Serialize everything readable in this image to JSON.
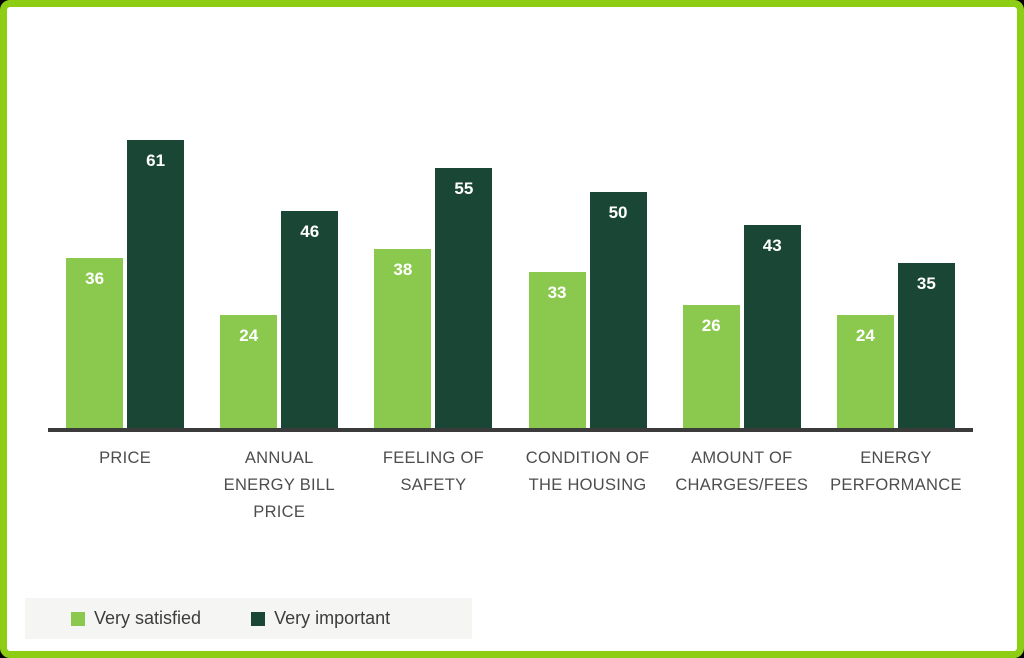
{
  "page": {
    "background_color": "#000000"
  },
  "card": {
    "background_color": "#FFFFFF",
    "border_color": "#8DCE14"
  },
  "chart_data": {
    "type": "bar",
    "title": "",
    "categories": [
      "PRICE",
      "ANNUAL ENERGY BILL PRICE",
      "FEELING OF SAFETY",
      "CONDITION OF THE HOUSING",
      "AMOUNT OF CHARGES/FEES",
      "ENERGY PERFORMANCE"
    ],
    "category_lines": [
      [
        "PRICE"
      ],
      [
        "ANNUAL",
        "ENERGY BILL",
        "PRICE"
      ],
      [
        "FEELING OF",
        "SAFETY"
      ],
      [
        "CONDITION OF",
        "THE HOUSING"
      ],
      [
        "AMOUNT OF",
        "CHARGES/FEES"
      ],
      [
        "ENERGY",
        "PERFORMANCE"
      ]
    ],
    "series": [
      {
        "name": "Very satisfied",
        "color": "#8BC94E",
        "values": [
          36,
          24,
          38,
          33,
          26,
          24
        ]
      },
      {
        "name": "Very important",
        "color": "#1A4636",
        "values": [
          61,
          46,
          55,
          50,
          43,
          35
        ]
      }
    ],
    "ylim": [
      0,
      61
    ],
    "value_labels": true,
    "grid": false,
    "legend_position": "bottom-left",
    "axis_color": "#3B3B3B",
    "category_label_color": "#4D4D4D",
    "value_label_color": "#FFFFFF"
  },
  "legend": {
    "background_color": "#F5F5F4",
    "text_color": "#3D3D3D"
  }
}
